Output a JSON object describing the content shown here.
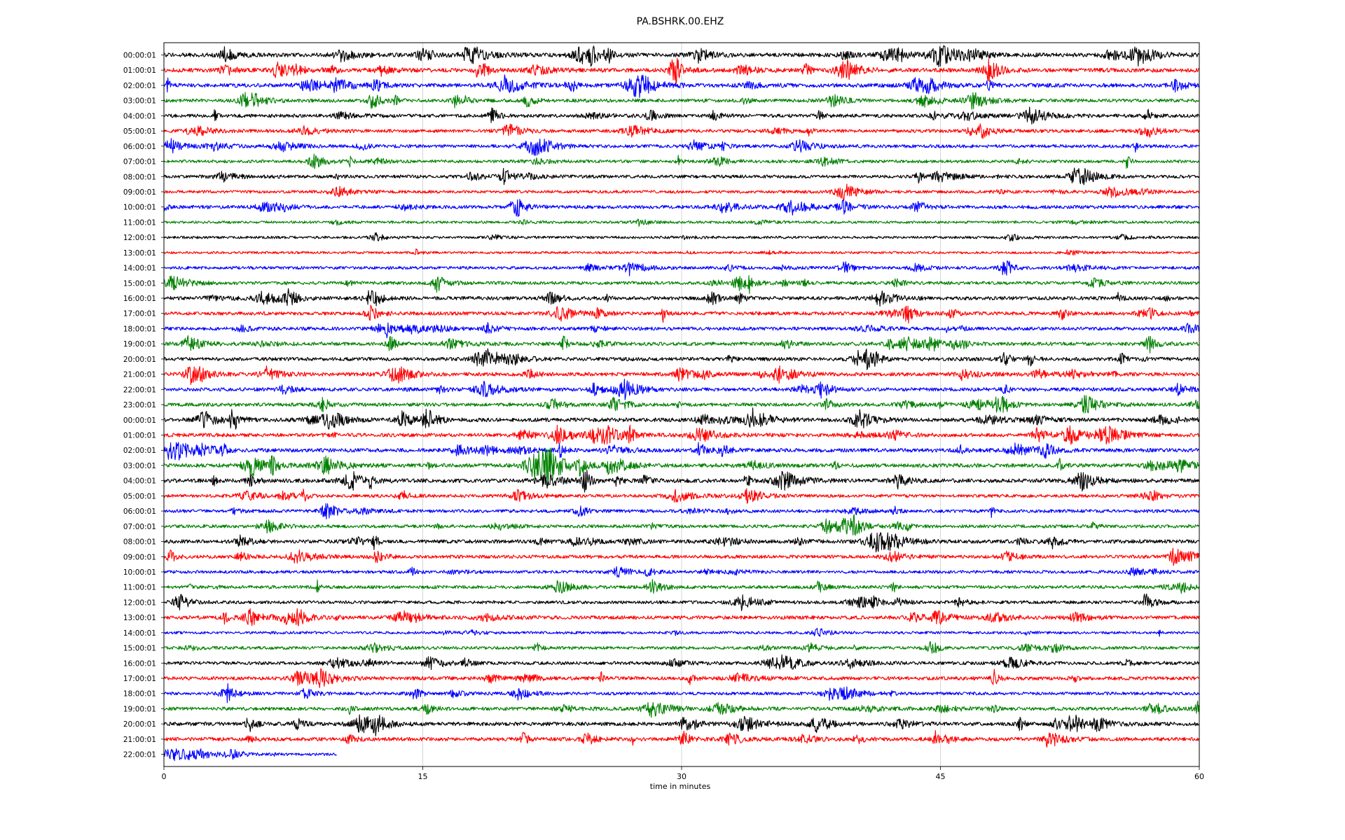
{
  "chart_data": {
    "type": "line",
    "title": "PA.BSHRK.00.EHZ",
    "xlabel": "time in minutes",
    "ylabel": "",
    "xlim": [
      0,
      60
    ],
    "xticks": [
      0,
      15,
      30,
      45,
      60
    ],
    "xtick_labels": [
      "0",
      "15",
      "30",
      "45",
      "60"
    ],
    "grid": "vertical lines at x ticks",
    "color_cycle": [
      "#000000",
      "#ff0000",
      "#0000ff",
      "#008000"
    ],
    "rows": [
      {
        "label": "00:00:01",
        "activity": 0.9,
        "end_minute": 60
      },
      {
        "label": "01:00:01",
        "activity": 0.9,
        "end_minute": 60
      },
      {
        "label": "02:00:01",
        "activity": 0.85,
        "end_minute": 60
      },
      {
        "label": "03:00:01",
        "activity": 0.6,
        "end_minute": 60
      },
      {
        "label": "04:00:01",
        "activity": 0.6,
        "end_minute": 60
      },
      {
        "label": "05:00:01",
        "activity": 0.5,
        "end_minute": 60
      },
      {
        "label": "06:00:01",
        "activity": 0.5,
        "end_minute": 60
      },
      {
        "label": "07:00:01",
        "activity": 0.4,
        "end_minute": 60
      },
      {
        "label": "08:00:01",
        "activity": 0.5,
        "end_minute": 60
      },
      {
        "label": "09:00:01",
        "activity": 0.35,
        "end_minute": 60
      },
      {
        "label": "10:00:01",
        "activity": 0.6,
        "end_minute": 60
      },
      {
        "label": "11:00:01",
        "activity": 0.15,
        "end_minute": 60
      },
      {
        "label": "12:00:01",
        "activity": 0.15,
        "end_minute": 60
      },
      {
        "label": "13:00:01",
        "activity": 0.05,
        "end_minute": 60
      },
      {
        "label": "14:00:01",
        "activity": 0.4,
        "end_minute": 60
      },
      {
        "label": "15:00:01",
        "activity": 0.5,
        "end_minute": 60
      },
      {
        "label": "16:00:01",
        "activity": 0.7,
        "end_minute": 60
      },
      {
        "label": "17:00:01",
        "activity": 0.6,
        "end_minute": 60
      },
      {
        "label": "18:00:01",
        "activity": 0.55,
        "end_minute": 60
      },
      {
        "label": "19:00:01",
        "activity": 0.7,
        "end_minute": 60
      },
      {
        "label": "20:00:01",
        "activity": 0.7,
        "end_minute": 60
      },
      {
        "label": "21:00:01",
        "activity": 0.75,
        "end_minute": 60
      },
      {
        "label": "22:00:01",
        "activity": 0.65,
        "end_minute": 60
      },
      {
        "label": "23:00:01",
        "activity": 0.65,
        "end_minute": 60
      },
      {
        "label": "00:00:01",
        "activity": 0.85,
        "end_minute": 60
      },
      {
        "label": "01:00:01",
        "activity": 0.7,
        "end_minute": 60
      },
      {
        "label": "02:00:01",
        "activity": 0.8,
        "end_minute": 60
      },
      {
        "label": "03:00:01",
        "activity": 0.85,
        "end_minute": 60
      },
      {
        "label": "04:00:01",
        "activity": 0.85,
        "end_minute": 60
      },
      {
        "label": "05:00:01",
        "activity": 0.45,
        "end_minute": 60
      },
      {
        "label": "06:00:01",
        "activity": 0.5,
        "end_minute": 60
      },
      {
        "label": "07:00:01",
        "activity": 0.5,
        "end_minute": 60
      },
      {
        "label": "08:00:01",
        "activity": 0.7,
        "end_minute": 60
      },
      {
        "label": "09:00:01",
        "activity": 0.55,
        "end_minute": 60
      },
      {
        "label": "10:00:01",
        "activity": 0.4,
        "end_minute": 60
      },
      {
        "label": "11:00:01",
        "activity": 0.45,
        "end_minute": 60
      },
      {
        "label": "12:00:01",
        "activity": 0.45,
        "end_minute": 60
      },
      {
        "label": "13:00:01",
        "activity": 0.65,
        "end_minute": 60
      },
      {
        "label": "14:00:01",
        "activity": 0.2,
        "end_minute": 60
      },
      {
        "label": "15:00:01",
        "activity": 0.4,
        "end_minute": 60
      },
      {
        "label": "16:00:01",
        "activity": 0.5,
        "end_minute": 60
      },
      {
        "label": "17:00:01",
        "activity": 0.65,
        "end_minute": 60
      },
      {
        "label": "18:00:01",
        "activity": 0.4,
        "end_minute": 60
      },
      {
        "label": "19:00:01",
        "activity": 0.6,
        "end_minute": 60
      },
      {
        "label": "20:00:01",
        "activity": 0.75,
        "end_minute": 60
      },
      {
        "label": "21:00:01",
        "activity": 0.7,
        "end_minute": 60
      },
      {
        "label": "22:00:01",
        "activity": 0.2,
        "end_minute": 10
      }
    ]
  }
}
